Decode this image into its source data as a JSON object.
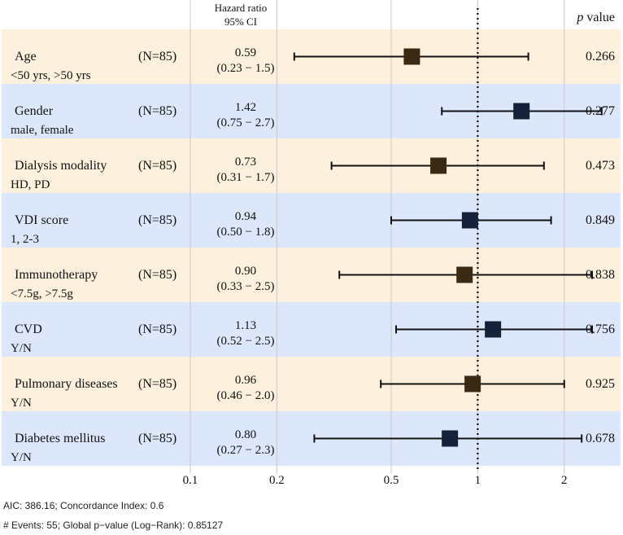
{
  "chart_data": {
    "type": "forest",
    "header_hr": "Hazard ratio",
    "header_ci": "95% CI",
    "header_p_italic": "p",
    "header_p_rest": " value",
    "x_scale": "log",
    "xlim": [
      0.1,
      2.5
    ],
    "reference_value": 1,
    "ticks": [
      0.1,
      0.2,
      0.5,
      1,
      2
    ],
    "tick_labels": [
      "0.1",
      "0.2",
      "0.5",
      "1",
      "2"
    ],
    "colors": {
      "band_a": "#fdf0dc",
      "band_b": "#dde7fb",
      "marker_a": "#3a2a14",
      "marker_b": "#16213a",
      "line": "#111111",
      "grid": "#c8c8c8"
    },
    "rows": [
      {
        "name": "Age",
        "sub": "<50 yrs, >50 yrs",
        "n": "(N=85)",
        "hr": 0.59,
        "hr_label": "0.59",
        "ci_label": "(0.23 − 1.5)",
        "lo": 0.23,
        "hi": 1.5,
        "p": "0.266"
      },
      {
        "name": "Gender",
        "sub": "male, female",
        "n": "(N=85)",
        "hr": 1.42,
        "hr_label": "1.42",
        "ci_label": "(0.75 − 2.7)",
        "lo": 0.75,
        "hi": 2.7,
        "p": "0.277"
      },
      {
        "name": "Dialysis modality",
        "sub": "HD, PD",
        "n": "(N=85)",
        "hr": 0.73,
        "hr_label": "0.73",
        "ci_label": "(0.31 − 1.7)",
        "lo": 0.31,
        "hi": 1.7,
        "p": "0.473"
      },
      {
        "name": "VDI score",
        "sub": "1, 2-3",
        "n": "(N=85)",
        "hr": 0.94,
        "hr_label": "0.94",
        "ci_label": "(0.50 − 1.8)",
        "lo": 0.5,
        "hi": 1.8,
        "p": "0.849"
      },
      {
        "name": "Immunotherapy",
        "sub": "<7.5g, >7.5g",
        "n": "(N=85)",
        "hr": 0.9,
        "hr_label": "0.90",
        "ci_label": "(0.33 − 2.5)",
        "lo": 0.33,
        "hi": 2.5,
        "p": "0.838"
      },
      {
        "name": "CVD",
        "sub": " Y/N",
        "n": "(N=85)",
        "hr": 1.13,
        "hr_label": "1.13",
        "ci_label": "(0.52 − 2.5)",
        "lo": 0.52,
        "hi": 2.5,
        "p": "0.756"
      },
      {
        "name": "Pulmonary diseases",
        "sub": " Y/N",
        "n": "(N=85)",
        "hr": 0.96,
        "hr_label": "0.96",
        "ci_label": "(0.46 − 2.0)",
        "lo": 0.46,
        "hi": 2.0,
        "p": "0.925"
      },
      {
        "name": "Diabetes mellitus",
        "sub": " Y/N",
        "n": "(N=85)",
        "hr": 0.8,
        "hr_label": "0.80",
        "ci_label": "(0.27 − 2.3)",
        "lo": 0.27,
        "hi": 2.3,
        "p": "0.678"
      }
    ]
  },
  "footnotes": {
    "line1": "AIC: 386.16; Concordance Index: 0.6",
    "line2": "# Events: 55; Global p−value (Log−Rank): 0.85127"
  }
}
